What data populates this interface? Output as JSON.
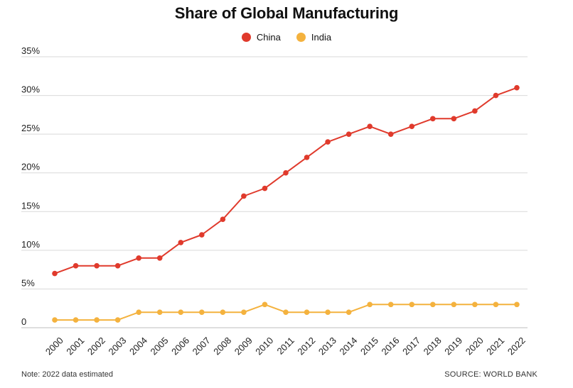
{
  "chart_data": {
    "type": "line",
    "title": "Share of Global Manufacturing",
    "xlabel": "",
    "ylabel": "",
    "x": [
      "2000",
      "2001",
      "2002",
      "2003",
      "2004",
      "2005",
      "2006",
      "2007",
      "2008",
      "2009",
      "2010",
      "2011",
      "2012",
      "2013",
      "2014",
      "2015",
      "2016",
      "2017",
      "2018",
      "2019",
      "2020",
      "2021",
      "2022"
    ],
    "y_ticks": [
      {
        "value": 0,
        "label": "0"
      },
      {
        "value": 5,
        "label": "5%"
      },
      {
        "value": 10,
        "label": "10%"
      },
      {
        "value": 15,
        "label": "15%"
      },
      {
        "value": 20,
        "label": "20%"
      },
      {
        "value": 25,
        "label": "25%"
      },
      {
        "value": 30,
        "label": "30%"
      },
      {
        "value": 35,
        "label": "35%"
      }
    ],
    "ylim": [
      0,
      35
    ],
    "grid": true,
    "legend_position": "top-center",
    "series": [
      {
        "name": "China",
        "color": "#e03a2c",
        "values": [
          7,
          8,
          8,
          8,
          9,
          9,
          11,
          12,
          14,
          17,
          18,
          20,
          22,
          24,
          25,
          26,
          25,
          26,
          27,
          27,
          28,
          30,
          31
        ]
      },
      {
        "name": "India",
        "color": "#f4b23e",
        "values": [
          1,
          1,
          1,
          1,
          2,
          2,
          2,
          2,
          2,
          2,
          3,
          2,
          2,
          2,
          2,
          3,
          3,
          3,
          3,
          3,
          3,
          3,
          3
        ]
      }
    ]
  },
  "footer": {
    "note": "Note: 2022 data estimated",
    "source": "SOURCE: WORLD BANK"
  }
}
